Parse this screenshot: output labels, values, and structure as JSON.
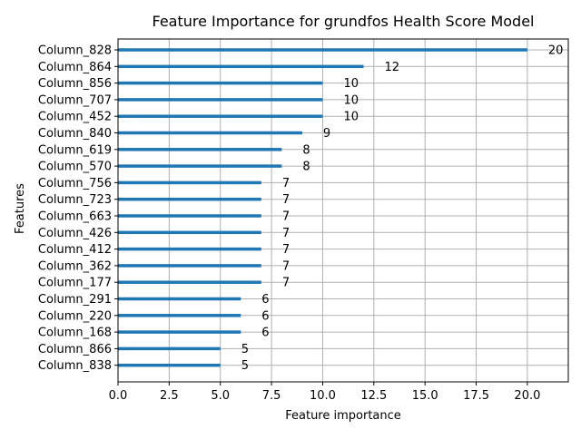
{
  "chart_data": {
    "type": "bar",
    "orientation": "horizontal",
    "title": "Feature Importance for grundfos Health Score Model",
    "xlabel": "Feature importance",
    "ylabel": "Features",
    "categories": [
      "Column_828",
      "Column_864",
      "Column_856",
      "Column_707",
      "Column_452",
      "Column_840",
      "Column_619",
      "Column_570",
      "Column_756",
      "Column_723",
      "Column_663",
      "Column_426",
      "Column_412",
      "Column_362",
      "Column_177",
      "Column_291",
      "Column_220",
      "Column_168",
      "Column_866",
      "Column_838"
    ],
    "values": [
      20,
      12,
      10,
      10,
      10,
      9,
      8,
      8,
      7,
      7,
      7,
      7,
      7,
      7,
      7,
      6,
      6,
      6,
      5,
      5
    ],
    "value_labels": [
      "20",
      "12",
      "10",
      "10",
      "10",
      "9",
      "8",
      "8",
      "7",
      "7",
      "7",
      "7",
      "7",
      "7",
      "7",
      "6",
      "6",
      "6",
      "5",
      "5"
    ],
    "xlim": [
      0,
      22
    ],
    "xticks": [
      0,
      2.5,
      5,
      7.5,
      10,
      12.5,
      15,
      17.5,
      20
    ],
    "xtick_labels": [
      "0.0",
      "2.5",
      "5.0",
      "7.5",
      "10.0",
      "12.5",
      "15.0",
      "17.5",
      "20.0"
    ],
    "grid": true,
    "bar_color": "#1f77b4",
    "grid_color": "#b0b0b0"
  }
}
